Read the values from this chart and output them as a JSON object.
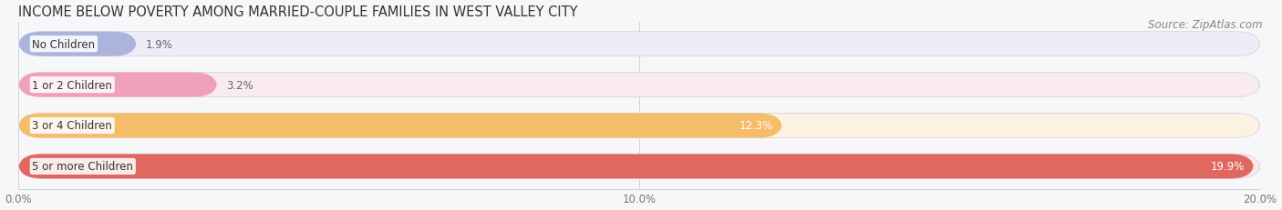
{
  "title": "INCOME BELOW POVERTY AMONG MARRIED-COUPLE FAMILIES IN WEST VALLEY CITY",
  "source": "Source: ZipAtlas.com",
  "categories": [
    "No Children",
    "1 or 2 Children",
    "3 or 4 Children",
    "5 or more Children"
  ],
  "values": [
    1.9,
    3.2,
    12.3,
    19.9
  ],
  "bar_colors": [
    "#aab4dc",
    "#f0a0b8",
    "#f5bc6a",
    "#e06860"
  ],
  "bar_bg_colors": [
    "#ecedf6",
    "#faebef",
    "#fdf2e2",
    "#faeae8"
  ],
  "xlim": [
    0,
    20.0
  ],
  "xticks": [
    0.0,
    10.0,
    20.0
  ],
  "xtick_labels": [
    "0.0%",
    "10.0%",
    "20.0%"
  ],
  "title_fontsize": 10.5,
  "source_fontsize": 8.5,
  "bar_label_fontsize": 8.5,
  "category_fontsize": 8.5,
  "background_color": "#f7f7f9"
}
